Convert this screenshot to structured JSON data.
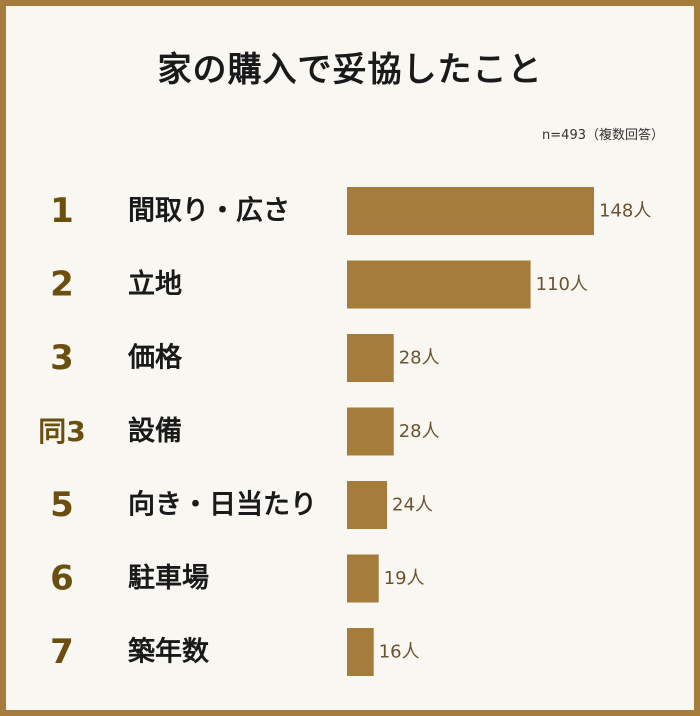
{
  "chart_data": {
    "type": "bar",
    "orientation": "horizontal",
    "title": "家の購入で妥協したこと",
    "note": "n=493（複数回答）",
    "bar_color": "#a57c3b",
    "rank_color": "#6b4f0f",
    "value_color": "#6b5331",
    "unit": "人",
    "items": [
      {
        "rank": "1",
        "label": "間取り・広さ",
        "value": 148,
        "value_label": "148人"
      },
      {
        "rank": "2",
        "label": "立地",
        "value": 110,
        "value_label": "110人"
      },
      {
        "rank": "3",
        "label": "価格",
        "value": 28,
        "value_label": "28人"
      },
      {
        "rank": "同3",
        "label": "設備",
        "value": 28,
        "value_label": "28人"
      },
      {
        "rank": "5",
        "label": "向き・日当たり",
        "value": 24,
        "value_label": "24人"
      },
      {
        "rank": "6",
        "label": "駐車場",
        "value": 19,
        "value_label": "19人"
      },
      {
        "rank": "7",
        "label": "築年数",
        "value": 16,
        "value_label": "16人"
      }
    ]
  }
}
